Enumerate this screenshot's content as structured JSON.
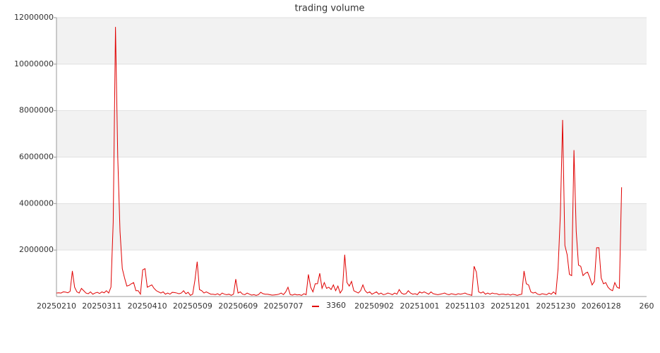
{
  "chart_data": {
    "type": "line",
    "title": "trading volume",
    "categories": [
      "20250210",
      null,
      null,
      null,
      null,
      null,
      null,
      null,
      null,
      null,
      null,
      null,
      null,
      null,
      null,
      null,
      null,
      null,
      null,
      null,
      "20250311",
      null,
      null,
      null,
      null,
      null,
      null,
      null,
      null,
      null,
      null,
      null,
      null,
      null,
      null,
      null,
      null,
      null,
      null,
      null,
      "20250410",
      null,
      null,
      null,
      null,
      null,
      null,
      null,
      null,
      null,
      null,
      null,
      null,
      null,
      null,
      null,
      null,
      null,
      null,
      null,
      "20250509",
      null,
      null,
      null,
      null,
      null,
      null,
      null,
      null,
      null,
      null,
      null,
      null,
      null,
      null,
      null,
      null,
      null,
      null,
      null,
      "20250609",
      null,
      null,
      null,
      null,
      null,
      null,
      null,
      null,
      null,
      null,
      null,
      null,
      null,
      null,
      null,
      null,
      null,
      null,
      null,
      "20250707",
      null,
      null,
      null,
      null,
      null,
      null,
      null,
      null,
      null,
      null,
      null,
      null,
      null,
      null,
      null,
      null,
      null,
      null,
      null,
      null,
      null,
      null,
      null,
      null,
      null,
      null,
      null,
      null,
      null,
      null,
      null,
      null,
      null,
      null,
      null,
      null,
      null,
      null,
      null,
      "20250902",
      null,
      null,
      null,
      null,
      null,
      null,
      null,
      null,
      null,
      null,
      null,
      null,
      null,
      null,
      null,
      null,
      null,
      null,
      null,
      "20251001",
      null,
      null,
      null,
      null,
      null,
      null,
      null,
      null,
      null,
      null,
      null,
      null,
      null,
      null,
      null,
      null,
      null,
      null,
      null,
      "20251103",
      null,
      null,
      null,
      null,
      null,
      null,
      null,
      null,
      null,
      null,
      null,
      null,
      null,
      null,
      null,
      null,
      null,
      null,
      null,
      "20251201",
      null,
      null,
      null,
      null,
      null,
      null,
      null,
      null,
      null,
      null,
      null,
      null,
      null,
      null,
      null,
      null,
      null,
      null,
      null,
      "20251230",
      null,
      null,
      null,
      null,
      null,
      null,
      null,
      null,
      null,
      null,
      null,
      null,
      null,
      null,
      null,
      null,
      null,
      null,
      null,
      "20260128",
      null,
      null,
      null,
      null,
      null,
      null,
      null,
      null,
      null,
      null,
      null,
      null,
      null,
      null,
      null,
      null,
      null,
      null,
      null,
      "260"
    ],
    "series": [
      {
        "name": "3360",
        "color": "#e00000",
        "values": [
          150000,
          160000,
          150000,
          200000,
          190000,
          160000,
          220000,
          1100000,
          400000,
          200000,
          150000,
          350000,
          250000,
          150000,
          120000,
          200000,
          100000,
          150000,
          180000,
          130000,
          200000,
          160000,
          250000,
          150000,
          400000,
          3200000,
          11600000,
          6000000,
          2800000,
          1200000,
          800000,
          450000,
          480000,
          550000,
          600000,
          250000,
          250000,
          100000,
          1150000,
          1200000,
          400000,
          450000,
          500000,
          350000,
          250000,
          200000,
          150000,
          200000,
          100000,
          150000,
          100000,
          180000,
          170000,
          150000,
          120000,
          150000,
          250000,
          120000,
          180000,
          50000,
          100000,
          700000,
          1500000,
          300000,
          250000,
          150000,
          200000,
          150000,
          100000,
          100000,
          80000,
          120000,
          60000,
          150000,
          100000,
          80000,
          100000,
          50000,
          100000,
          750000,
          150000,
          200000,
          100000,
          80000,
          150000,
          100000,
          60000,
          80000,
          50000,
          80000,
          180000,
          120000,
          100000,
          100000,
          80000,
          60000,
          70000,
          80000,
          100000,
          150000,
          80000,
          200000,
          400000,
          80000,
          60000,
          100000,
          70000,
          80000,
          50000,
          120000,
          80000,
          950000,
          400000,
          200000,
          550000,
          550000,
          1000000,
          350000,
          600000,
          350000,
          400000,
          300000,
          500000,
          250000,
          450000,
          150000,
          300000,
          1800000,
          600000,
          450000,
          650000,
          250000,
          200000,
          150000,
          250000,
          500000,
          250000,
          150000,
          200000,
          100000,
          150000,
          200000,
          100000,
          150000,
          80000,
          100000,
          150000,
          120000,
          80000,
          150000,
          100000,
          300000,
          150000,
          100000,
          120000,
          250000,
          150000,
          100000,
          120000,
          80000,
          200000,
          150000,
          200000,
          150000,
          100000,
          200000,
          120000,
          100000,
          80000,
          100000,
          120000,
          150000,
          100000,
          80000,
          120000,
          100000,
          80000,
          120000,
          100000,
          120000,
          150000,
          100000,
          80000,
          50000,
          1300000,
          1050000,
          200000,
          150000,
          200000,
          100000,
          150000,
          100000,
          150000,
          120000,
          120000,
          80000,
          100000,
          100000,
          80000,
          100000,
          60000,
          100000,
          80000,
          50000,
          80000,
          100000,
          1100000,
          550000,
          500000,
          200000,
          150000,
          180000,
          100000,
          80000,
          120000,
          100000,
          80000,
          150000,
          100000,
          200000,
          100000,
          1200000,
          3500000,
          7600000,
          2200000,
          1800000,
          950000,
          900000,
          6300000,
          2800000,
          1350000,
          1300000,
          900000,
          1000000,
          1050000,
          800000,
          500000,
          650000,
          2100000,
          2100000,
          800000,
          550000,
          600000,
          400000,
          300000,
          250000,
          600000,
          400000,
          350000,
          4700000,
          null,
          null,
          null,
          null,
          null,
          null,
          null,
          null,
          null,
          null,
          null
        ]
      }
    ],
    "ylim": [
      0,
      12000000
    ],
    "yticks": [
      2000000,
      4000000,
      6000000,
      8000000,
      10000000,
      12000000
    ],
    "grid": true,
    "legend": "bottom"
  }
}
